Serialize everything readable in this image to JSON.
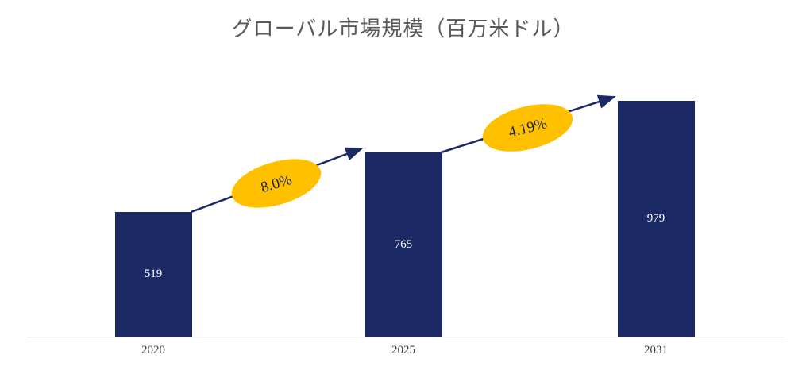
{
  "chart_data": {
    "type": "bar",
    "title": "グローバル市場規模（百万米ドル）",
    "categories": [
      "2020",
      "2025",
      "2031"
    ],
    "values": [
      519,
      765,
      979
    ],
    "xlabel": "",
    "ylabel": "",
    "ylim": [
      0,
      1000
    ],
    "grid": false,
    "legend": "none",
    "growth_annotations": [
      {
        "label": "8.0%",
        "from": "2020",
        "to": "2025"
      },
      {
        "label": "4.19%",
        "from": "2025",
        "to": "2031"
      }
    ],
    "colors": {
      "bar": "#1b2a64",
      "annotation_fill": "#ffc000",
      "annotation_text": "#1a2440",
      "arrow": "#1b2a64",
      "title_text": "#595959",
      "axis_line": "#d9d9d9",
      "x_label_text": "#404040",
      "bar_value_text": "#ffffff"
    }
  }
}
